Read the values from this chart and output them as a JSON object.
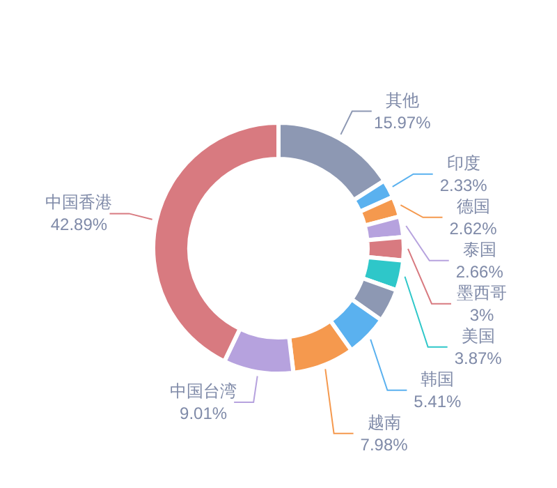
{
  "chart_data": {
    "type": "donut",
    "categories": [
      "其他",
      "印度",
      "德国",
      "泰国",
      "墨西哥",
      "美国",
      null,
      "韩国",
      "越南",
      "中国台湾",
      "中国香港"
    ],
    "values": [
      15.97,
      2.33,
      2.62,
      2.66,
      3,
      3.87,
      4.26,
      5.41,
      7.98,
      9.01,
      42.89
    ],
    "colors": [
      "#8d98b3",
      "#5ab1ef",
      "#f5994e",
      "#b6a2de",
      "#d87a80",
      "#2ec7c9",
      "#8d98b3",
      "#5ab1ef",
      "#f5994e",
      "#b6a2de",
      "#d87a80"
    ],
    "value_labels": [
      "15.97%",
      "2.33%",
      "2.62%",
      "2.66%",
      "3%",
      "3.87%",
      null,
      "5.41%",
      "7.98%",
      "9.01%",
      "42.89%"
    ]
  }
}
